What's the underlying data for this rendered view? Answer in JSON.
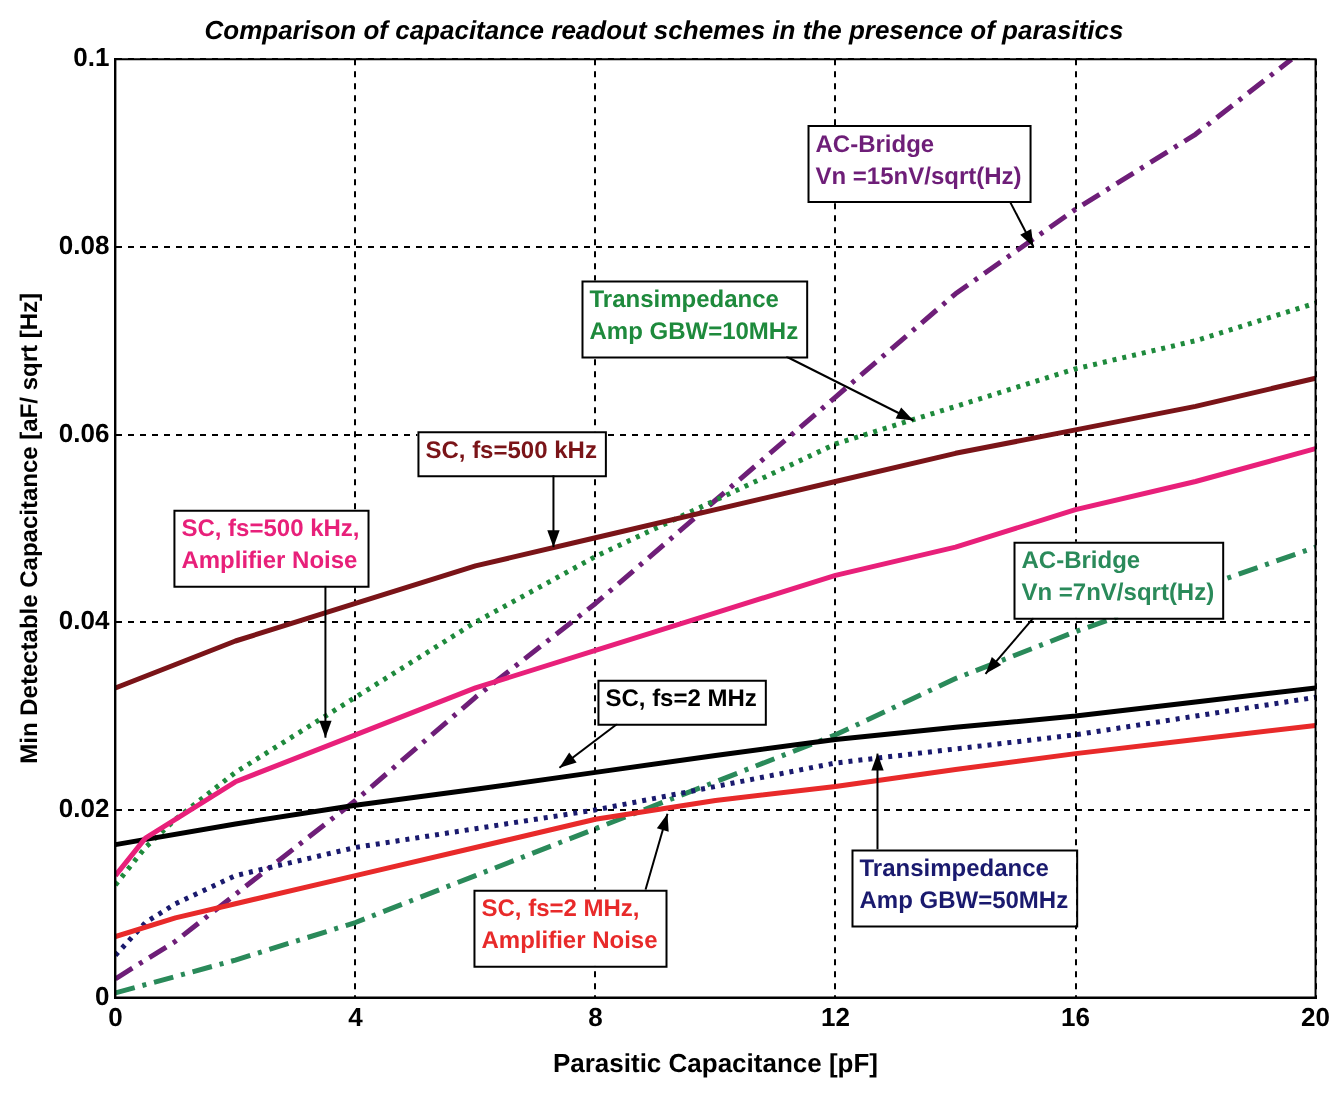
{
  "chart_data": {
    "type": "line",
    "title": "Comparison of capacitance readout schemes in the presence of parasitics",
    "xlabel": "Parasitic Capacitance [pF]",
    "ylabel": "Min Detectable Capacitance [aF/ sqrt [Hz]",
    "xlim": [
      0,
      20
    ],
    "xticks": [
      0,
      4,
      8,
      12,
      16,
      20
    ],
    "ylim": [
      0,
      0.1
    ],
    "yticks": [
      0,
      0.02,
      0.04,
      0.06,
      0.08,
      0.1
    ],
    "grid": true,
    "legend": false,
    "marker": "none",
    "series": [
      {
        "color": "#7a1418",
        "line_style": "solid",
        "x": [
          0,
          1,
          2,
          4,
          6,
          8,
          10,
          12,
          14,
          16,
          18,
          20
        ],
        "values": [
          0.033,
          0.0355,
          0.038,
          0.042,
          0.046,
          0.049,
          0.052,
          0.055,
          0.058,
          0.0605,
          0.063,
          0.066
        ]
      },
      {
        "color": "#e8207a",
        "line_style": "solid",
        "x": [
          0,
          0.5,
          1,
          2,
          4,
          6,
          8,
          10,
          12,
          14,
          16,
          18,
          20
        ],
        "values": [
          0.013,
          0.017,
          0.019,
          0.023,
          0.028,
          0.033,
          0.037,
          0.041,
          0.045,
          0.048,
          0.052,
          0.055,
          0.0585
        ]
      },
      {
        "color": "#000000",
        "line_style": "solid",
        "x": [
          0,
          2,
          4,
          6,
          8,
          10,
          12,
          14,
          16,
          18,
          20
        ],
        "values": [
          0.0163,
          0.0185,
          0.0205,
          0.0222,
          0.024,
          0.0258,
          0.0275,
          0.0288,
          0.03,
          0.0315,
          0.033
        ]
      },
      {
        "color": "#e82a2a",
        "line_style": "solid",
        "x": [
          0,
          1,
          2,
          4,
          6,
          8,
          10,
          12,
          14,
          16,
          18,
          20
        ],
        "values": [
          0.0065,
          0.0085,
          0.01,
          0.013,
          0.016,
          0.019,
          0.021,
          0.0225,
          0.0243,
          0.026,
          0.0275,
          0.029
        ]
      },
      {
        "color": "#1a1a6e",
        "line_style": "dotted",
        "x": [
          0,
          0.5,
          1,
          2,
          4,
          6,
          8,
          10,
          12,
          14,
          16,
          18,
          20
        ],
        "values": [
          0.0045,
          0.008,
          0.01,
          0.013,
          0.016,
          0.018,
          0.02,
          0.0225,
          0.025,
          0.0265,
          0.028,
          0.03,
          0.032
        ]
      },
      {
        "color": "#1e8a3c",
        "line_style": "dotted",
        "x": [
          0,
          0.5,
          1,
          2,
          4,
          6,
          8,
          10,
          12,
          14,
          16,
          18,
          20
        ],
        "values": [
          0.012,
          0.016,
          0.019,
          0.024,
          0.032,
          0.04,
          0.047,
          0.053,
          0.059,
          0.063,
          0.067,
          0.07,
          0.074
        ]
      },
      {
        "color": "#6e1e78",
        "line_style": "dashed",
        "x": [
          0,
          1,
          2,
          4,
          6,
          8,
          10,
          12,
          14,
          16,
          18,
          19.6
        ],
        "values": [
          0.002,
          0.006,
          0.011,
          0.021,
          0.032,
          0.042,
          0.053,
          0.064,
          0.075,
          0.084,
          0.092,
          0.1
        ]
      },
      {
        "color": "#2a8a5a",
        "line_style": "dashed",
        "x": [
          0,
          2,
          4,
          6,
          8,
          10,
          12,
          14,
          16,
          20
        ],
        "values": [
          0.0005,
          0.004,
          0.008,
          0.013,
          0.018,
          0.023,
          0.028,
          0.034,
          0.039,
          0.048
        ]
      }
    ],
    "annotations": [
      {
        "text": "AC-Bridge\nVn =15nV/sqrt(Hz)",
        "x": 15.3,
        "y": 0.08
      },
      {
        "text": "Transimpedance\nAmp GBW=10MHz",
        "x": 13.3,
        "y": 0.0615
      },
      {
        "text": "SC, fs=500 kHz",
        "x": 7.3,
        "y": 0.048
      },
      {
        "text": "SC, fs=500 kHz,\nAmplifier Noise",
        "x": 3.5,
        "y": 0.0277
      },
      {
        "text": "AC-Bridge\nVn =7nV/sqrt(Hz)",
        "x": 14.5,
        "y": 0.0345
      },
      {
        "text": "SC, fs=2 MHz",
        "x": 7.4,
        "y": 0.0245
      },
      {
        "text": "Transimpedance\nAmp GBW=50MHz",
        "x": 12.7,
        "y": 0.026
      },
      {
        "text": "SC, fs=2 MHz,\nAmplifier Noise",
        "x": 9.2,
        "y": 0.0196
      }
    ]
  }
}
